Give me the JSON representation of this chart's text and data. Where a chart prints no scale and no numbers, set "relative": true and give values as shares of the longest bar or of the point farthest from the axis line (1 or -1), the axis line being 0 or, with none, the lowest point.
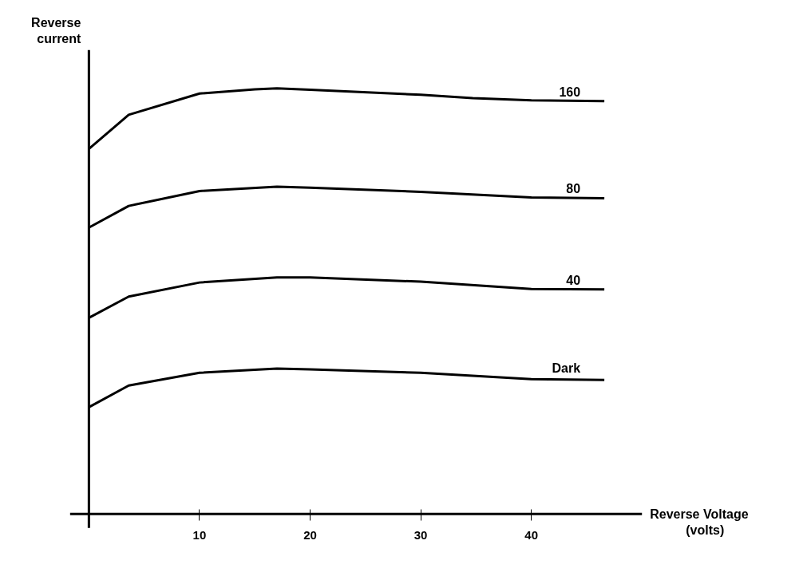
{
  "chart_data": {
    "type": "line",
    "relative": true,
    "xlabel": "Reverse Voltage\n(volts)",
    "ylabel": "Reverse current",
    "xlim": [
      -1.7,
      50
    ],
    "xticks": [
      10,
      20,
      30,
      40
    ],
    "grid": false,
    "legend": false,
    "marker": "none",
    "line_style": "solid",
    "series": [
      {
        "name": "160",
        "color": "#000000",
        "x": [
          0,
          3.6,
          10,
          15,
          17,
          20,
          30,
          34.7,
          40,
          46.6
        ],
        "values": [
          0.858,
          0.938,
          0.988,
          0.998,
          1.0,
          0.997,
          0.985,
          0.977,
          0.972,
          0.97
        ]
      },
      {
        "name": "80",
        "color": "#000000",
        "x": [
          0,
          3.6,
          10,
          17,
          20,
          30,
          40,
          46.6
        ],
        "values": [
          0.673,
          0.724,
          0.759,
          0.769,
          0.767,
          0.757,
          0.744,
          0.742
        ]
      },
      {
        "name": "40",
        "color": "#000000",
        "x": [
          0,
          3.6,
          10,
          17,
          20,
          30,
          40,
          46.6
        ],
        "values": [
          0.461,
          0.511,
          0.544,
          0.556,
          0.556,
          0.546,
          0.529,
          0.528
        ]
      },
      {
        "name": "Dark",
        "color": "#000000",
        "x": [
          0,
          3.6,
          10,
          17,
          20,
          30,
          40,
          46.6
        ],
        "values": [
          0.251,
          0.302,
          0.332,
          0.342,
          0.34,
          0.332,
          0.317,
          0.315
        ]
      }
    ]
  }
}
